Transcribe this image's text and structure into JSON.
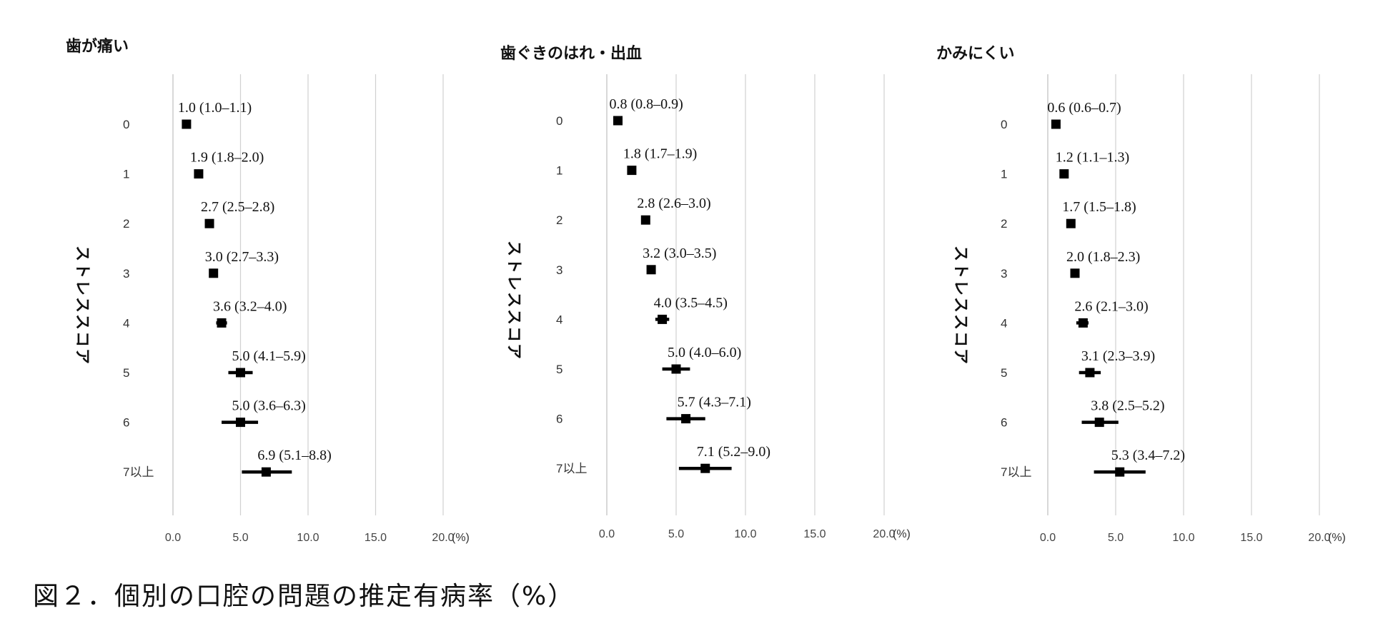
{
  "caption": "図２．個別の口腔の問題の推定有病率（%）",
  "chart_data": [
    {
      "type": "forest",
      "title": "歯が痛い",
      "ylabel": "ストレススコア",
      "unit": "(%)",
      "xlim": [
        0,
        20
      ],
      "xticks": [
        "0.0",
        "5.0",
        "10.0",
        "15.0",
        "20.0"
      ],
      "categories": [
        "0",
        "1",
        "2",
        "3",
        "4",
        "5",
        "6",
        "7以上"
      ],
      "values": [
        1.0,
        1.9,
        2.7,
        3.0,
        3.6,
        5.0,
        5.0,
        6.9
      ],
      "ci_low": [
        1.0,
        1.8,
        2.5,
        2.7,
        3.2,
        4.1,
        3.6,
        5.1
      ],
      "ci_high": [
        1.1,
        2.0,
        2.8,
        3.3,
        4.0,
        5.9,
        6.3,
        8.8
      ],
      "labels": [
        "1.0 (1.0–1.1)",
        "1.9 (1.8–2.0)",
        "2.7 (2.5–2.8)",
        "3.0 (2.7–3.3)",
        "3.6 (3.2–4.0)",
        "5.0 (4.1–5.9)",
        "5.0 (3.6–6.3)",
        "6.9 (5.1–8.8)"
      ],
      "grid": true
    },
    {
      "type": "forest",
      "title": "歯ぐきのはれ・出血",
      "ylabel": "ストレススコア",
      "unit": "(%)",
      "xlim": [
        0,
        20
      ],
      "xticks": [
        "0.0",
        "5.0",
        "10.0",
        "15.0",
        "20.0"
      ],
      "categories": [
        "0",
        "1",
        "2",
        "3",
        "4",
        "5",
        "6",
        "7以上"
      ],
      "values": [
        0.8,
        1.8,
        2.8,
        3.2,
        4.0,
        5.0,
        5.7,
        7.1
      ],
      "ci_low": [
        0.8,
        1.7,
        2.6,
        3.0,
        3.5,
        4.0,
        4.3,
        5.2
      ],
      "ci_high": [
        0.9,
        1.9,
        3.0,
        3.5,
        4.5,
        6.0,
        7.1,
        9.0
      ],
      "labels": [
        "0.8 (0.8–0.9)",
        "1.8 (1.7–1.9)",
        "2.8 (2.6–3.0)",
        "3.2 (3.0–3.5)",
        "4.0 (3.5–4.5)",
        "5.0 (4.0–6.0)",
        "5.7 (4.3–7.1)",
        "7.1 (5.2–9.0)"
      ],
      "grid": true
    },
    {
      "type": "forest",
      "title": "かみにくい",
      "ylabel": "ストレススコア",
      "unit": "(%)",
      "xlim": [
        0,
        20
      ],
      "xticks": [
        "0.0",
        "5.0",
        "10.0",
        "15.0",
        "20.0"
      ],
      "categories": [
        "0",
        "1",
        "2",
        "3",
        "4",
        "5",
        "6",
        "7以上"
      ],
      "values": [
        0.6,
        1.2,
        1.7,
        2.0,
        2.6,
        3.1,
        3.8,
        5.3
      ],
      "ci_low": [
        0.6,
        1.1,
        1.5,
        1.8,
        2.1,
        2.3,
        2.5,
        3.4
      ],
      "ci_high": [
        0.7,
        1.3,
        1.8,
        2.3,
        3.0,
        3.9,
        5.2,
        7.2
      ],
      "labels": [
        "0.6 (0.6–0.7)",
        "1.2 (1.1–1.3)",
        "1.7 (1.5–1.8)",
        "2.0 (1.8–2.3)",
        "2.6 (2.1–3.0)",
        "3.1 (2.3–3.9)",
        "3.8 (2.5–5.2)",
        "5.3 (3.4–7.2)"
      ],
      "grid": true
    }
  ]
}
